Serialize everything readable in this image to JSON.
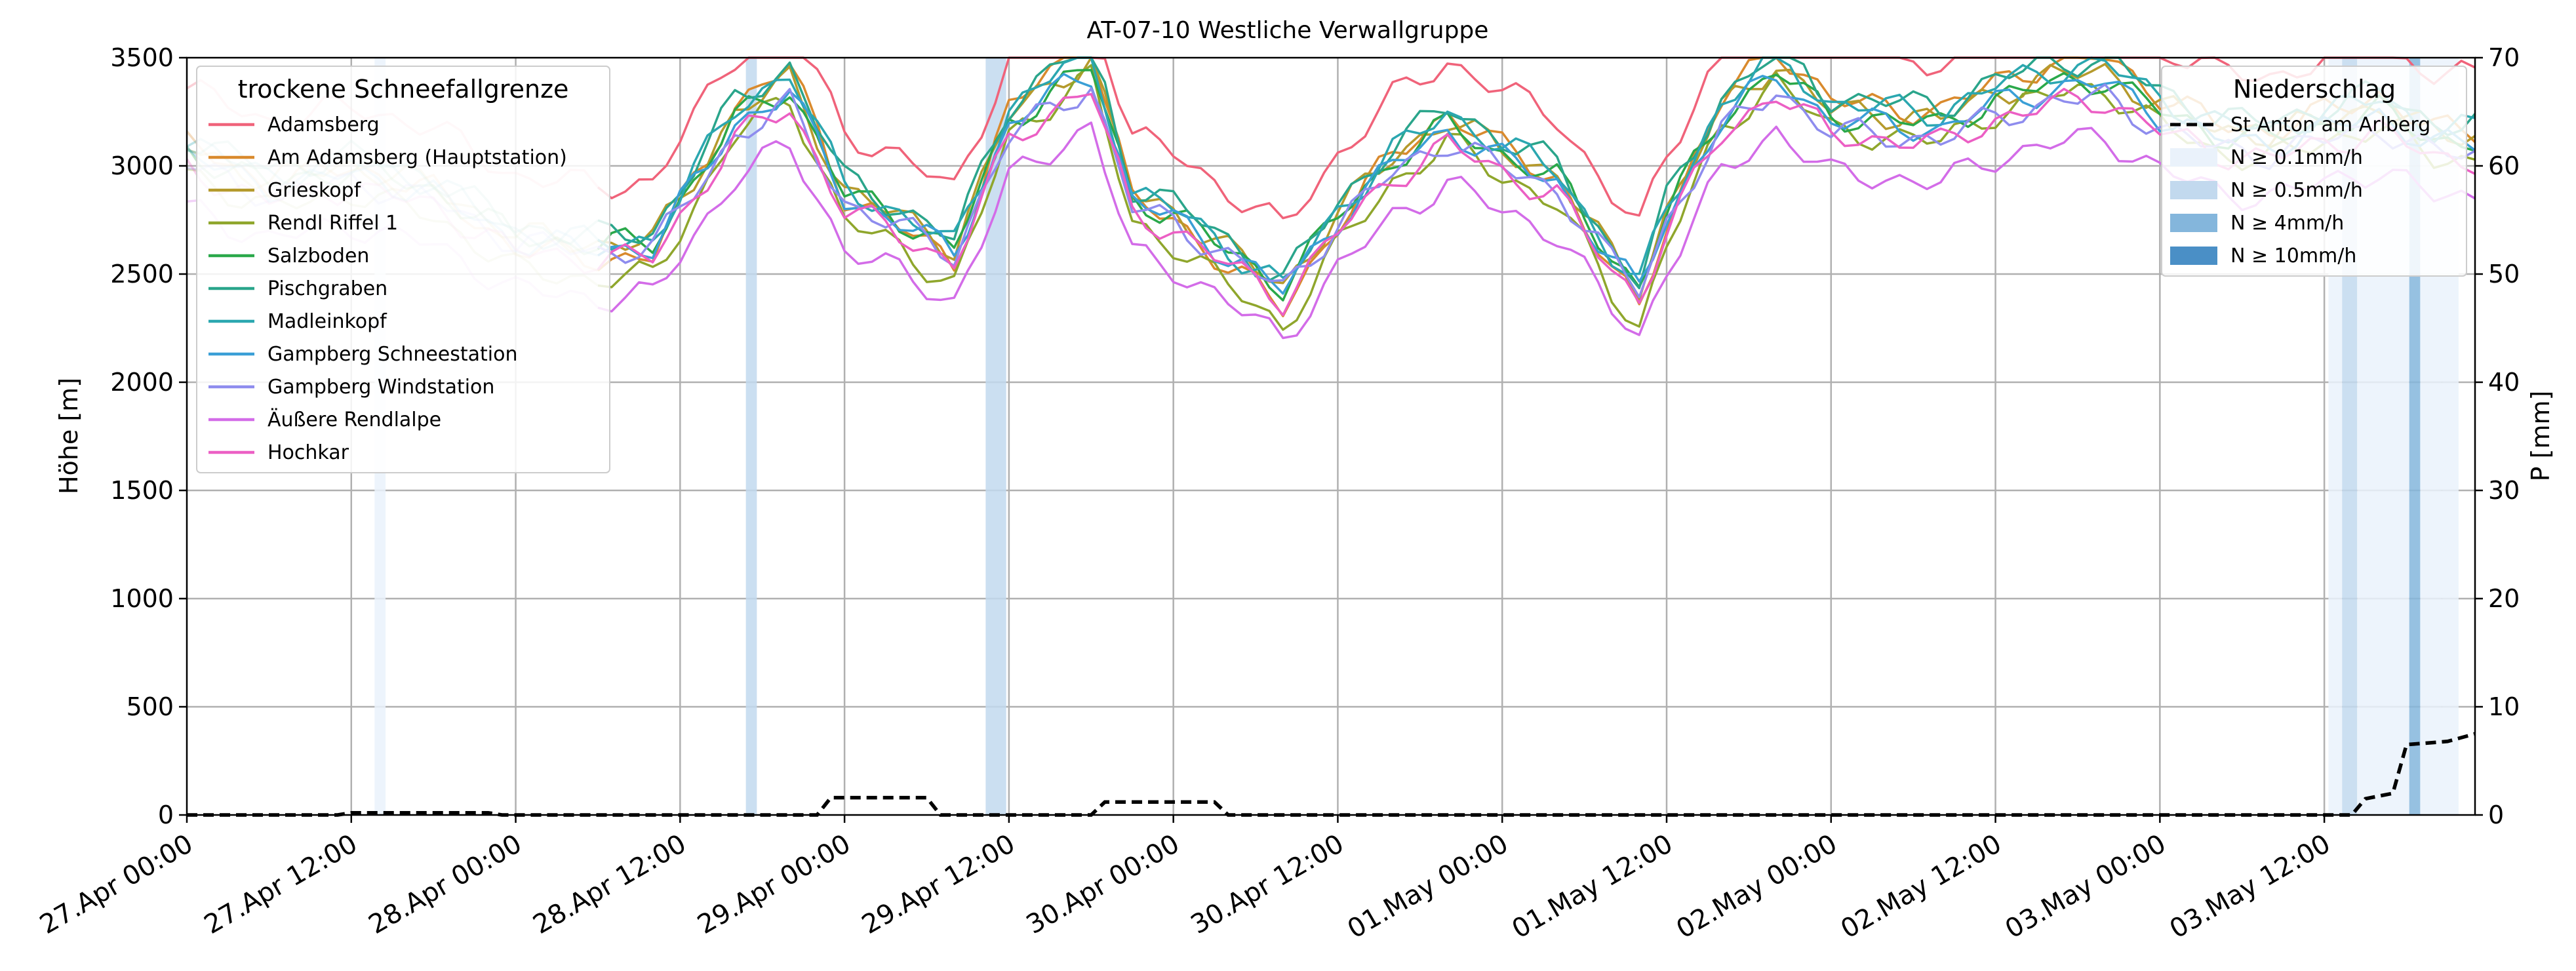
{
  "chart_data": {
    "type": "line",
    "title": "AT-07-10 Westliche Verwallgruppe",
    "ylabel": "Höhe [m]",
    "y2label": "P [mm]",
    "xlabel": "",
    "ylim": [
      0,
      3500
    ],
    "y2lim": [
      0,
      70
    ],
    "yticks": [
      0,
      500,
      1000,
      1500,
      2000,
      2500,
      3000,
      3500
    ],
    "y2ticks": [
      0,
      10,
      20,
      30,
      40,
      50,
      60,
      70
    ],
    "x_hours_range": [
      0,
      167
    ],
    "x_ticks": [
      {
        "label": "27.Apr 00:00",
        "hour": 0
      },
      {
        "label": "27.Apr 12:00",
        "hour": 12
      },
      {
        "label": "28.Apr 00:00",
        "hour": 24
      },
      {
        "label": "28.Apr 12:00",
        "hour": 36
      },
      {
        "label": "29.Apr 00:00",
        "hour": 48
      },
      {
        "label": "29.Apr 12:00",
        "hour": 60
      },
      {
        "label": "30.Apr 00:00",
        "hour": 72
      },
      {
        "label": "30.Apr 12:00",
        "hour": 84
      },
      {
        "label": "01.May 00:00",
        "hour": 96
      },
      {
        "label": "01.May 12:00",
        "hour": 108
      },
      {
        "label": "02.May 00:00",
        "hour": 120
      },
      {
        "label": "02.May 12:00",
        "hour": 132
      },
      {
        "label": "03.May 00:00",
        "hour": 144
      },
      {
        "label": "03.May 12:00",
        "hour": 156
      }
    ],
    "grid": true,
    "legend_snow_title": "trockene Schneefallgrenze",
    "legend_snow_position": "top-left",
    "legend_precip_title": "Niederschlag",
    "legend_precip_position": "top-right",
    "station_order": [
      "Adamsberg",
      "Am Adamsberg (Hauptstation)",
      "Grieskopf",
      "Rendl Riffel 1",
      "Salzboden",
      "Pischgraben",
      "Madleinkopf",
      "Gampberg Schneestation",
      "Gampberg Windstation",
      "Äußere Rendlalpe",
      "Hochkar"
    ],
    "station_colors": [
      "#f0637a",
      "#d98a2d",
      "#b59a2c",
      "#8fa62c",
      "#2aa84a",
      "#2aa58b",
      "#2ba7b0",
      "#3a9fd6",
      "#8e8cee",
      "#d36ce8",
      "#ec5fc4"
    ],
    "series_shape": [
      [
        0,
        0.16
      ],
      [
        6,
        0.05
      ],
      [
        12,
        0.1
      ],
      [
        18,
        0.03
      ],
      [
        24,
        -0.13
      ],
      [
        30,
        -0.16
      ],
      [
        34,
        -0.15
      ],
      [
        40,
        0.27
      ],
      [
        44,
        0.38
      ],
      [
        48,
        0.02
      ],
      [
        52,
        -0.07
      ],
      [
        56,
        -0.17
      ],
      [
        60,
        0.26
      ],
      [
        64,
        0.4
      ],
      [
        66,
        0.45
      ],
      [
        69,
        0.0
      ],
      [
        72,
        -0.05
      ],
      [
        76,
        -0.18
      ],
      [
        80,
        -0.3
      ],
      [
        84,
        -0.06
      ],
      [
        88,
        0.13
      ],
      [
        92,
        0.25
      ],
      [
        96,
        0.15
      ],
      [
        100,
        0.07
      ],
      [
        104,
        -0.2
      ],
      [
        106,
        -0.3
      ],
      [
        108,
        -0.05
      ],
      [
        112,
        0.28
      ],
      [
        116,
        0.44
      ],
      [
        120,
        0.28
      ],
      [
        124,
        0.27
      ],
      [
        128,
        0.25
      ],
      [
        132,
        0.34
      ],
      [
        136,
        0.39
      ],
      [
        140,
        0.41
      ],
      [
        144,
        0.3
      ],
      [
        148,
        0.22
      ],
      [
        152,
        0.2
      ],
      [
        156,
        0.25
      ],
      [
        160,
        0.3
      ],
      [
        164,
        0.2
      ],
      [
        167,
        0.2
      ]
    ],
    "station_profiles": [
      {
        "base": 3050,
        "amp": 1400,
        "shift": 0.06
      },
      {
        "base": 2850,
        "amp": 1650,
        "shift": -0.01
      },
      {
        "base": 2850,
        "amp": 1400,
        "shift": 0.01
      },
      {
        "base": 2800,
        "amp": 1550,
        "shift": -0.05
      },
      {
        "base": 2850,
        "amp": 1350,
        "shift": 0.0
      },
      {
        "base": 2850,
        "amp": 1450,
        "shift": 0.04
      },
      {
        "base": 2850,
        "amp": 1450,
        "shift": 0.02
      },
      {
        "base": 2830,
        "amp": 1350,
        "shift": 0.0
      },
      {
        "base": 2830,
        "amp": 1250,
        "shift": -0.02
      },
      {
        "base": 2700,
        "amp": 1300,
        "shift": -0.08
      },
      {
        "base": 2800,
        "amp": 1300,
        "shift": -0.02
      }
    ],
    "faded_until_hour": 30,
    "precip_series": {
      "name": "St Anton am Arlberg",
      "style": "dashed",
      "color": "#000000",
      "points": [
        [
          0,
          0
        ],
        [
          11,
          0
        ],
        [
          12,
          0.2
        ],
        [
          22,
          0.2
        ],
        [
          23,
          0
        ],
        [
          46,
          0
        ],
        [
          47,
          1.6
        ],
        [
          54,
          1.6
        ],
        [
          55,
          0
        ],
        [
          66,
          0
        ],
        [
          67,
          1.2
        ],
        [
          75,
          1.2
        ],
        [
          76,
          0
        ],
        [
          158,
          0
        ],
        [
          159,
          1.5
        ],
        [
          161,
          2.0
        ],
        [
          162,
          6.5
        ],
        [
          165,
          6.8
        ],
        [
          167,
          7.5
        ]
      ]
    },
    "precip_legend": [
      {
        "label": "N ≥ 0.1mm/h",
        "color": "#eaf2fb"
      },
      {
        "label": "N ≥ 0.5mm/h",
        "color": "#c2d9ee"
      },
      {
        "label": "N ≥ 4mm/h",
        "color": "#84b6dc"
      },
      {
        "label": "N ≥ 10mm/h",
        "color": "#4a8fc6"
      }
    ],
    "precip_bands": [
      {
        "start": 13.7,
        "end": 14.5,
        "level": 0
      },
      {
        "start": 40.8,
        "end": 41.6,
        "level": 1
      },
      {
        "start": 58.3,
        "end": 59.0,
        "level": 1
      },
      {
        "start": 59.0,
        "end": 59.8,
        "level": 1
      },
      {
        "start": 156.3,
        "end": 157.3,
        "level": 0
      },
      {
        "start": 157.3,
        "end": 158.4,
        "level": 1
      },
      {
        "start": 158.4,
        "end": 162.2,
        "level": 0
      },
      {
        "start": 162.2,
        "end": 163.0,
        "level": 2
      },
      {
        "start": 163.0,
        "end": 164.6,
        "level": 0
      },
      {
        "start": 164.6,
        "end": 165.8,
        "level": 0
      }
    ]
  }
}
